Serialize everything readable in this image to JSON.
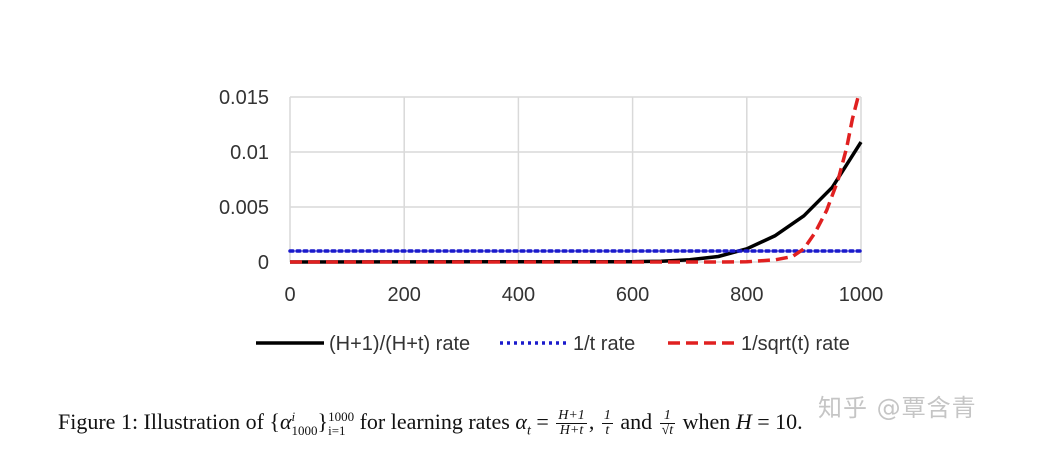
{
  "chart_data": {
    "type": "line",
    "x_domain": [
      0,
      1000
    ],
    "y_domain": [
      0,
      0.015
    ],
    "x_ticks": [
      "0",
      "200",
      "400",
      "600",
      "800",
      "1000"
    ],
    "y_ticks": [
      "0.015",
      "0.01",
      "0.005",
      "0"
    ],
    "grid": true,
    "legend_position": "bottom",
    "series": [
      {
        "name": "(H+1)/(H+t) rate",
        "color": "#000000",
        "style": "solid",
        "points": [
          [
            0,
            0
          ],
          [
            600,
            3e-05
          ],
          [
            650,
            6e-05
          ],
          [
            700,
            0.0002
          ],
          [
            750,
            0.0005
          ],
          [
            800,
            0.0012
          ],
          [
            850,
            0.0024
          ],
          [
            900,
            0.0042
          ],
          [
            950,
            0.0068
          ],
          [
            1000,
            0.0109
          ]
        ]
      },
      {
        "name": "1/t rate",
        "color": "#1a1acc",
        "style": "dotted",
        "points": [
          [
            0,
            0.001
          ],
          [
            1000,
            0.001
          ]
        ]
      },
      {
        "name": "1/sqrt(t) rate",
        "color": "#e02020",
        "style": "dashed",
        "points": [
          [
            0,
            0
          ],
          [
            750,
            0
          ],
          [
            800,
            2e-05
          ],
          [
            850,
            0.0002
          ],
          [
            880,
            0.0005
          ],
          [
            900,
            0.0012
          ],
          [
            920,
            0.0027
          ],
          [
            940,
            0.0047
          ],
          [
            960,
            0.0075
          ],
          [
            975,
            0.0104
          ],
          [
            985,
            0.013
          ],
          [
            995,
            0.015
          ]
        ]
      }
    ]
  },
  "caption": {
    "prefix": "Figure 1: Illustration of {",
    "alpha": "α",
    "alpha_sub": "1000",
    "alpha_sup": "i",
    "range_sup": "1000",
    "range_sub": "i=1",
    "mid1": " for learning rates ",
    "alpha_t": "α",
    "alpha_t_sub": "t",
    "equals": " = ",
    "f1_num": "H+1",
    "f1_den": "H+t",
    "comma": ", ",
    "f2_num": "1",
    "f2_den": "t",
    "and": " and ",
    "f3_num": "1",
    "f3_den": "√t",
    "when": " when ",
    "H": "H",
    "tail": " = 10."
  },
  "watermark": "知乎 @覃含青"
}
